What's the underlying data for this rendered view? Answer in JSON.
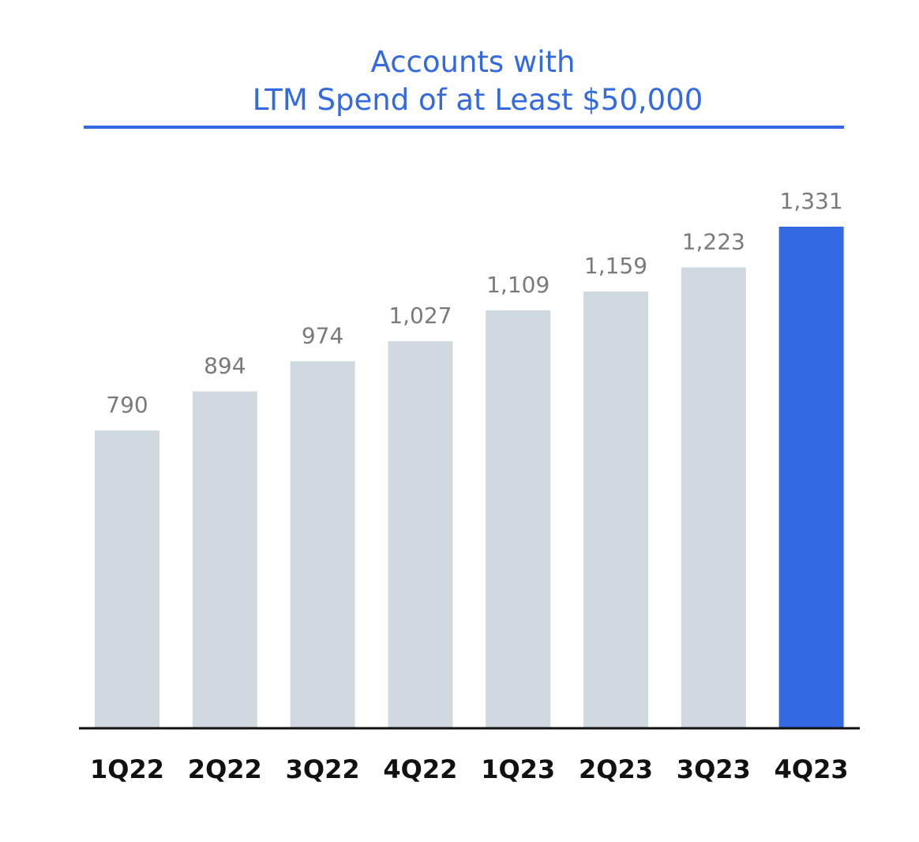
{
  "colors": {
    "accent": "#3369e3",
    "bar_default": "#cfd9e0",
    "bar_highlight": "#3369e3",
    "value_label": "#7a7a7a",
    "category_label": "#111111",
    "axis_line": "#111111"
  },
  "chart_data": {
    "type": "bar",
    "title": "Accounts with LTM Spend of at Least $50,000",
    "title_lines": [
      "Accounts with",
      "LTM Spend of at Least $50,000"
    ],
    "categories": [
      "1Q22",
      "2Q22",
      "3Q22",
      "4Q22",
      "1Q23",
      "2Q23",
      "3Q23",
      "4Q23"
    ],
    "values": [
      790,
      894,
      974,
      1027,
      1109,
      1159,
      1223,
      1331
    ],
    "value_labels": [
      "790",
      "894",
      "974",
      "1,027",
      "1,109",
      "1,159",
      "1,223",
      "1,331"
    ],
    "highlight_category": "4Q23",
    "ylim": [
      0,
      1331
    ],
    "grid": false,
    "legend": "none",
    "xlabel": "",
    "ylabel": ""
  }
}
